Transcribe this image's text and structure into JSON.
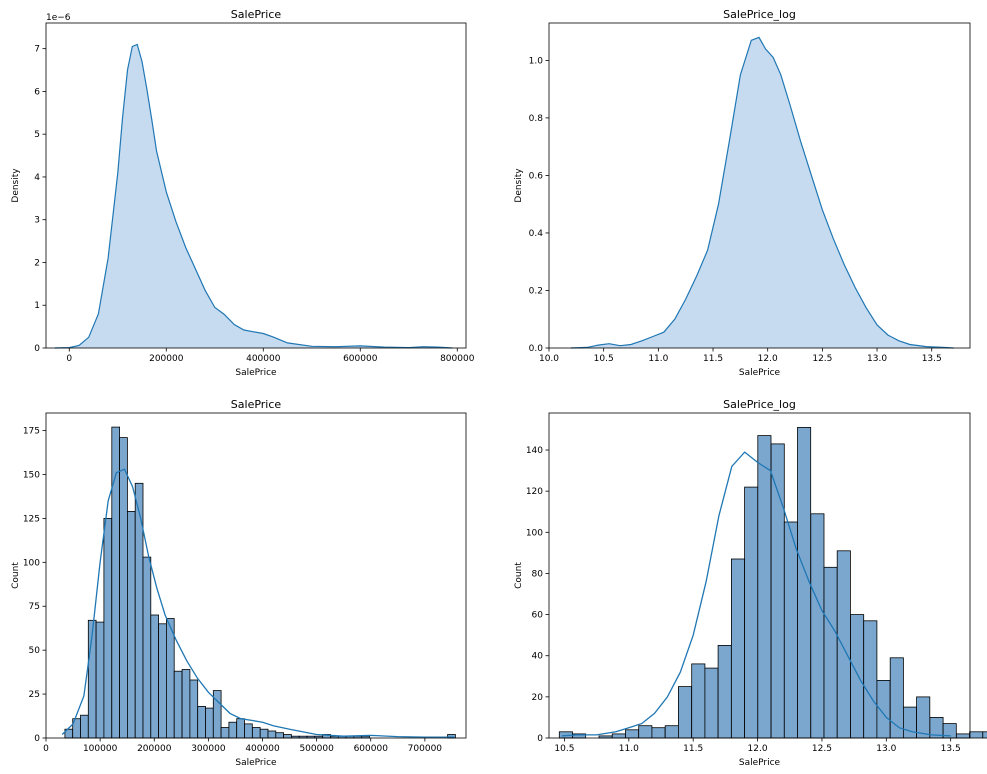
{
  "chart_data": [
    {
      "type": "area",
      "title": "SalePrice",
      "xlabel": "SalePrice",
      "ylabel": "Density",
      "offset_text": "1e−6",
      "xlim": [
        -48000,
        818000
      ],
      "ylim": [
        0,
        7.6
      ],
      "xticks": [
        0,
        200000,
        400000,
        600000,
        800000
      ],
      "xtick_labels": [
        "0",
        "200000",
        "400000",
        "600000",
        "800000"
      ],
      "yticks": [
        0,
        1,
        2,
        3,
        4,
        5,
        6,
        7
      ],
      "ytick_labels": [
        "0",
        "1",
        "2",
        "3",
        "4",
        "5",
        "6",
        "7"
      ],
      "grid": false,
      "fill_color": "#c6dbef",
      "line_color": "#1f77b4",
      "x": [
        -30000,
        0,
        20000,
        40000,
        60000,
        80000,
        100000,
        110000,
        120000,
        130000,
        140000,
        150000,
        160000,
        170000,
        180000,
        200000,
        220000,
        240000,
        260000,
        280000,
        300000,
        320000,
        340000,
        360000,
        380000,
        400000,
        420000,
        450000,
        500000,
        550000,
        600000,
        650000,
        700000,
        730000,
        760000,
        790000
      ],
      "values": [
        0,
        0.01,
        0.06,
        0.25,
        0.8,
        2.1,
        4.1,
        5.4,
        6.5,
        7.05,
        7.1,
        6.7,
        6.05,
        5.35,
        4.6,
        3.65,
        2.95,
        2.35,
        1.85,
        1.35,
        0.95,
        0.78,
        0.55,
        0.42,
        0.38,
        0.34,
        0.26,
        0.12,
        0.04,
        0.03,
        0.05,
        0.02,
        0.01,
        0.03,
        0.02,
        0
      ]
    },
    {
      "type": "area",
      "title": "SalePrice_log",
      "xlabel": "SalePrice",
      "ylabel": "Density",
      "xlim": [
        10.0,
        13.85
      ],
      "ylim": [
        0,
        1.13
      ],
      "xticks": [
        10.0,
        10.5,
        11.0,
        11.5,
        12.0,
        12.5,
        13.0,
        13.5
      ],
      "xtick_labels": [
        "10.0",
        "10.5",
        "11.0",
        "11.5",
        "12.0",
        "12.5",
        "13.0",
        "13.5"
      ],
      "yticks": [
        0,
        0.2,
        0.4,
        0.6,
        0.8,
        1.0
      ],
      "ytick_labels": [
        "0.0",
        "0.2",
        "0.4",
        "0.6",
        "0.8",
        "1.0"
      ],
      "grid": false,
      "fill_color": "#c6dbef",
      "line_color": "#1f77b4",
      "x": [
        10.2,
        10.35,
        10.45,
        10.55,
        10.65,
        10.75,
        10.85,
        10.95,
        11.05,
        11.15,
        11.25,
        11.35,
        11.45,
        11.55,
        11.65,
        11.75,
        11.85,
        11.92,
        11.98,
        12.05,
        12.12,
        12.2,
        12.3,
        12.4,
        12.5,
        12.6,
        12.7,
        12.8,
        12.9,
        13.0,
        13.1,
        13.2,
        13.3,
        13.45,
        13.6,
        13.7
      ],
      "values": [
        0,
        0.002,
        0.01,
        0.015,
        0.008,
        0.012,
        0.025,
        0.04,
        0.055,
        0.1,
        0.17,
        0.25,
        0.34,
        0.5,
        0.72,
        0.95,
        1.07,
        1.08,
        1.04,
        1.01,
        0.95,
        0.85,
        0.72,
        0.6,
        0.48,
        0.38,
        0.29,
        0.21,
        0.14,
        0.08,
        0.045,
        0.025,
        0.012,
        0.005,
        0.002,
        0
      ]
    },
    {
      "type": "bar",
      "title": "SalePrice",
      "xlabel": "SalePrice",
      "ylabel": "Count",
      "xlim": [
        0,
        776000
      ],
      "ylim": [
        0,
        185
      ],
      "xticks": [
        0,
        100000,
        200000,
        300000,
        400000,
        500000,
        600000,
        700000
      ],
      "xtick_labels": [
        "0",
        "100000",
        "200000",
        "300000",
        "400000",
        "500000",
        "600000",
        "700000"
      ],
      "yticks": [
        0,
        25,
        50,
        75,
        100,
        125,
        150,
        175
      ],
      "ytick_labels": [
        "0",
        "25",
        "50",
        "75",
        "100",
        "125",
        "150",
        "175"
      ],
      "grid": false,
      "bar_color": "#7ba7cf",
      "line_color": "#1f77b4",
      "bin_start": 34900,
      "bin_width": 14432,
      "values": [
        5,
        11,
        13,
        67,
        66,
        125,
        177,
        171,
        129,
        145,
        103,
        70,
        65,
        68,
        38,
        39,
        33,
        18,
        17,
        27,
        6,
        9,
        11,
        8,
        6,
        5,
        4,
        3,
        2,
        1,
        1,
        1,
        1,
        2,
        1,
        1,
        1,
        1,
        1,
        0,
        0,
        0,
        0,
        0,
        0,
        0,
        0,
        0,
        0,
        2
      ],
      "kde_x": [
        30000,
        50000,
        70000,
        85000,
        100000,
        115000,
        130000,
        145000,
        160000,
        175000,
        190000,
        205000,
        220000,
        240000,
        260000,
        280000,
        300000,
        320000,
        340000,
        360000,
        380000,
        400000,
        420000,
        450000,
        500000,
        550000,
        600000,
        650000,
        700000,
        755000
      ],
      "kde_y": [
        2,
        8,
        24,
        58,
        100,
        135,
        151,
        153,
        143,
        125,
        103,
        85,
        70,
        56,
        44,
        34,
        26,
        20,
        14,
        11,
        10,
        9,
        7,
        5,
        2,
        1,
        1.5,
        0.8,
        0.5,
        0.5
      ]
    },
    {
      "type": "bar",
      "title": "SalePrice_log",
      "xlabel": "SalePrice",
      "ylabel": "Count",
      "xlim": [
        10.38,
        13.65
      ],
      "ylim": [
        0,
        158
      ],
      "xticks": [
        10.5,
        11.0,
        11.5,
        12.0,
        12.5,
        13.0,
        13.5
      ],
      "xtick_labels": [
        "10.5",
        "11.0",
        "11.5",
        "12.0",
        "12.5",
        "13.0",
        "13.5"
      ],
      "yticks": [
        0,
        20,
        40,
        60,
        80,
        100,
        120,
        140
      ],
      "ytick_labels": [
        "0",
        "20",
        "40",
        "60",
        "80",
        "100",
        "120",
        "140"
      ],
      "grid": false,
      "bar_color": "#7ba7cf",
      "line_color": "#1f77b4",
      "bin_start": 10.46,
      "bin_width": 0.1028,
      "values": [
        3,
        2,
        0,
        1,
        2,
        4,
        6,
        5,
        6,
        25,
        36,
        34,
        45,
        87,
        122,
        147,
        143,
        105,
        151,
        109,
        83,
        91,
        60,
        57,
        28,
        39,
        15,
        20,
        10,
        7,
        2,
        3,
        3,
        1,
        3
      ],
      "kde_x": [
        10.48,
        10.6,
        10.75,
        10.9,
        11.0,
        11.1,
        11.2,
        11.3,
        11.4,
        11.5,
        11.6,
        11.7,
        11.8,
        11.9,
        12.0,
        12.1,
        12.2,
        12.3,
        12.4,
        12.5,
        12.6,
        12.7,
        12.8,
        12.9,
        13.0,
        13.1,
        13.2,
        13.35,
        13.5
      ],
      "kde_y": [
        1,
        1.5,
        1.5,
        3,
        5,
        7,
        12,
        20,
        32,
        50,
        76,
        108,
        132,
        139,
        134,
        130,
        112,
        92,
        76,
        62,
        52,
        40,
        28,
        18,
        10,
        5,
        3,
        1.5,
        1
      ]
    }
  ]
}
